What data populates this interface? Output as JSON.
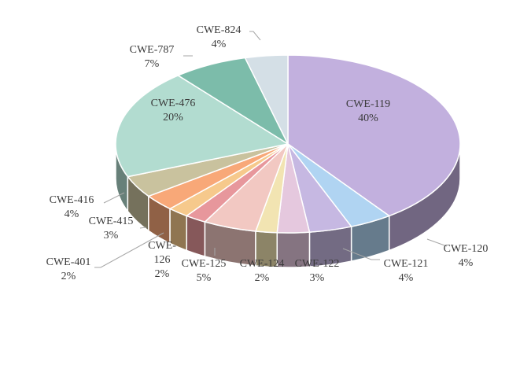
{
  "chart_data": {
    "type": "pie",
    "title": "",
    "categories": [
      "CWE-119",
      "CWE-120",
      "CWE-121",
      "CWE-122",
      "CWE-124",
      "CWE-125",
      "CWE-126",
      "CWE-401",
      "CWE-415",
      "CWE-416",
      "CWE-476",
      "CWE-787",
      "CWE-824"
    ],
    "values": [
      40,
      4,
      4,
      3,
      2,
      5,
      2,
      2,
      3,
      4,
      20,
      7,
      4
    ],
    "value_labels": [
      "40%",
      "4%",
      "4%",
      "3%",
      "2%",
      "5%",
      "2%",
      "2%",
      "3%",
      "4%",
      "20%",
      "7%",
      "4%"
    ],
    "colors": [
      "#c2b0de",
      "#b0d4f2",
      "#c6b8e2",
      "#e5c8de",
      "#f2e4b2",
      "#f2c8c2",
      "#e7979c",
      "#f6c98c",
      "#f8a878",
      "#c9c29e",
      "#b2dcd0",
      "#7cbcaa",
      "#d4dfe6"
    ],
    "legend": "none",
    "style": "3d",
    "data_labels": "outside-with-leader-lines"
  }
}
